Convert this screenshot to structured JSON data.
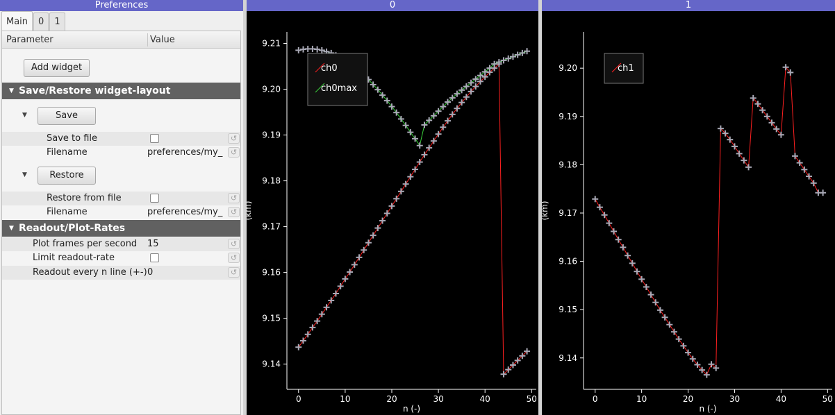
{
  "docks": {
    "prefs_title": "Preferences",
    "plot0_title": "0",
    "plot1_title": "1"
  },
  "tabs": [
    "Main",
    "0",
    "1"
  ],
  "tree": {
    "col_param": "Parameter",
    "col_value": "Value",
    "add_widget": "Add widget",
    "group_layout": "Save/Restore widget-layout",
    "save_button": "Save",
    "save_to_file": "Save to file",
    "filename1_label": "Filename",
    "filename1_value": "preferences/my_",
    "restore_button": "Restore",
    "restore_from_file": "Restore from file",
    "filename2_label": "Filename",
    "filename2_value": "preferences/my_",
    "group_rates": "Readout/Plot-Rates",
    "plot_fps_label": "Plot frames per second",
    "plot_fps_value": "15",
    "limit_rate_label": "Limit readout-rate",
    "readout_every_label": "Readout every n line (+-)",
    "readout_every_value": "0"
  },
  "colors": {
    "title_bar": "#6566c8",
    "group_bg": "#616161",
    "line_ch0": "#ff2020",
    "line_ch0max": "#3bd33b",
    "marker": "#a9a9b6",
    "plot_bg": "#000000"
  },
  "chart_data": [
    {
      "type": "line",
      "title": "0",
      "xlabel": "n (-)",
      "ylabel": "(km)",
      "xlim": [
        -2.5,
        51
      ],
      "ylim": [
        9.1345,
        9.2125
      ],
      "xticks": [
        0,
        10,
        20,
        30,
        40,
        50
      ],
      "yticks": [
        9.14,
        9.15,
        9.16,
        9.17,
        9.18,
        9.19,
        9.2,
        9.21
      ],
      "ytick_labels": [
        "9.14",
        "9.15",
        "9.16",
        "9.17",
        "9.18",
        "9.19",
        "9.20",
        "9.21"
      ],
      "legend": [
        "ch0",
        "ch0max"
      ],
      "legend_position": "top-left",
      "series": [
        {
          "name": "ch0",
          "color": "#ff2020",
          "x": [
            0,
            1,
            2,
            3,
            4,
            5,
            6,
            7,
            8,
            9,
            10,
            11,
            12,
            13,
            14,
            15,
            16,
            17,
            18,
            19,
            20,
            21,
            22,
            23,
            24,
            25,
            26,
            27,
            28,
            29,
            30,
            31,
            32,
            33,
            34,
            35,
            36,
            37,
            38,
            39,
            40,
            41,
            42,
            43,
            44,
            45,
            46,
            47,
            48,
            49
          ],
          "y": [
            9.1437,
            9.1451,
            9.1465,
            9.148,
            9.1494,
            9.1509,
            9.1524,
            9.1539,
            9.1554,
            9.157,
            9.1586,
            9.1601,
            9.1617,
            9.1633,
            9.1649,
            9.1665,
            9.1681,
            9.1697,
            9.1713,
            9.1729,
            9.1745,
            9.1761,
            9.1777,
            9.1793,
            9.1809,
            9.1825,
            9.1841,
            9.1857,
            9.1872,
            9.1887,
            9.1902,
            9.1917,
            9.1931,
            9.1945,
            9.1958,
            9.1971,
            9.1983,
            9.1995,
            9.2006,
            9.2017,
            9.2027,
            9.2037,
            9.2046,
            9.2055,
            9.1378,
            9.1388,
            9.1398,
            9.1408,
            9.1418,
            9.1428
          ]
        },
        {
          "name": "ch0max",
          "color": "#3bd33b",
          "x": [
            0,
            1,
            2,
            3,
            4,
            5,
            6,
            7,
            8,
            9,
            10,
            11,
            12,
            13,
            14,
            15,
            16,
            17,
            18,
            19,
            20,
            21,
            22,
            23,
            24,
            25,
            26,
            27,
            28,
            29,
            30,
            31,
            32,
            33,
            34,
            35,
            36,
            37,
            38,
            39,
            40,
            41,
            42,
            43,
            44,
            45,
            46,
            47,
            48,
            49
          ],
          "y": [
            9.2085,
            9.2087,
            9.2088,
            9.2088,
            9.2087,
            9.2085,
            9.2082,
            9.2079,
            9.2074,
            9.2069,
            9.2063,
            9.2056,
            9.2048,
            9.204,
            9.2031,
            9.2021,
            9.201,
            9.1999,
            9.1987,
            9.1975,
            9.1962,
            9.1949,
            9.1935,
            9.1921,
            9.1906,
            9.1892,
            9.1877,
            9.1922,
            9.1932,
            9.1942,
            9.1952,
            9.1962,
            9.1972,
            9.1981,
            9.199,
            9.1998,
            9.2006,
            9.2014,
            9.2022,
            9.203,
            9.2038,
            9.2046,
            9.2055,
            9.2059,
            9.2063,
            9.2067,
            9.2071,
            9.2075,
            9.2079,
            9.2083
          ]
        }
      ]
    },
    {
      "type": "line",
      "title": "1",
      "xlabel": "n (-)",
      "ylabel": "(km)",
      "xlim": [
        -2.5,
        51
      ],
      "ylim": [
        9.1335,
        9.2075
      ],
      "xticks": [
        0,
        10,
        20,
        30,
        40,
        50
      ],
      "yticks": [
        9.14,
        9.15,
        9.16,
        9.17,
        9.18,
        9.19,
        9.2
      ],
      "ytick_labels": [
        "9.14",
        "9.15",
        "9.16",
        "9.17",
        "9.18",
        "9.19",
        "9.20"
      ],
      "legend": [
        "ch1"
      ],
      "legend_position": "top-left",
      "series": [
        {
          "name": "ch1",
          "color": "#ff2020",
          "x": [
            0,
            1,
            2,
            3,
            4,
            5,
            6,
            7,
            8,
            9,
            10,
            11,
            12,
            13,
            14,
            15,
            16,
            17,
            18,
            19,
            20,
            21,
            22,
            23,
            24,
            25,
            26,
            27,
            28,
            29,
            30,
            31,
            32,
            33,
            34,
            35,
            36,
            37,
            38,
            39,
            40,
            41,
            42,
            43,
            44,
            45,
            46,
            47,
            48,
            49
          ],
          "y": [
            9.1729,
            9.1712,
            9.1696,
            9.1679,
            9.1662,
            9.1645,
            9.1629,
            9.1612,
            9.1596,
            9.1579,
            9.1563,
            9.1547,
            9.1531,
            9.1515,
            9.1499,
            9.1484,
            9.1469,
            9.1454,
            9.1439,
            9.1425,
            9.1411,
            9.1398,
            9.1386,
            9.1375,
            9.1365,
            9.1387,
            9.1379,
            9.1875,
            9.1865,
            9.1852,
            9.1838,
            9.1823,
            9.1809,
            9.1795,
            9.1938,
            9.1926,
            9.1913,
            9.19,
            9.1887,
            9.1874,
            9.1862,
            9.2002,
            9.1991,
            9.1818,
            9.1804,
            9.179,
            9.1776,
            9.1762,
            9.1742,
            9.1742
          ]
        }
      ]
    }
  ]
}
